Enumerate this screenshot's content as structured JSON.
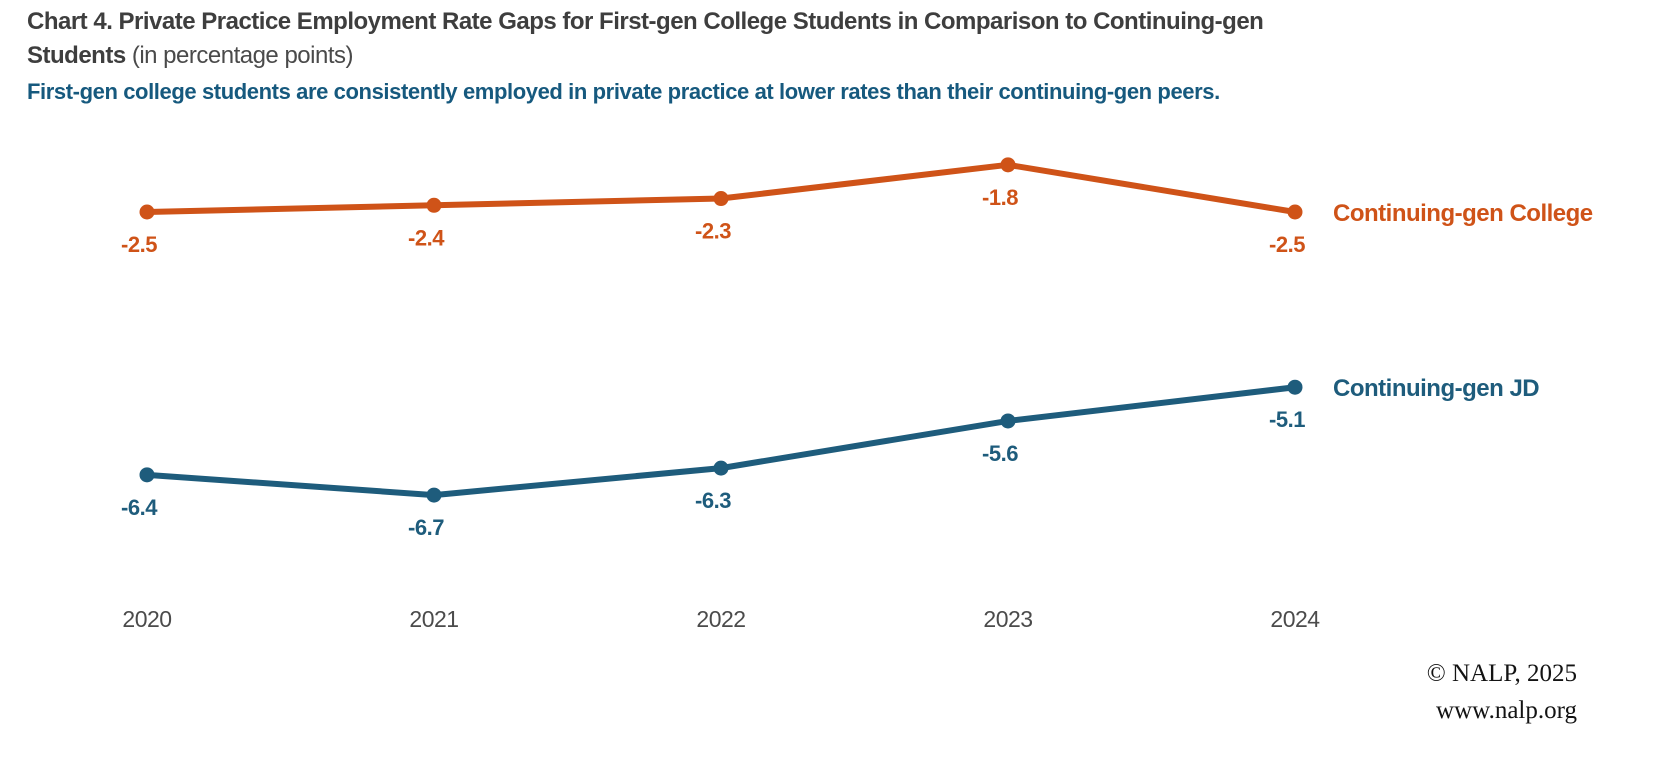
{
  "title": {
    "bold": "Chart 4. Private Practice Employment Rate Gaps for First-gen College Students in Comparison to Continuing-gen Students",
    "suffix": " (in percentage points)"
  },
  "subtitle": "First-gen college students are consistently employed in private practice at lower rates than their continuing-gen peers.",
  "footer": {
    "line1": "© NALP, 2025",
    "line2": "www.nalp.org"
  },
  "colors": {
    "orange_series": "#cf5318",
    "blue_series": "#1e5c7c",
    "title_text": "#3e3e3e",
    "subtitle_text": "#16597e",
    "axis_text": "#4b4b4b"
  },
  "chart_data": {
    "type": "line",
    "title": "Chart 4. Private Practice Employment Rate Gaps for First-gen College Students in Comparison to Continuing-gen Students (in percentage points)",
    "subtitle": "First-gen college students are consistently employed in private practice at lower rates than their continuing-gen peers.",
    "categories": [
      "2020",
      "2021",
      "2022",
      "2023",
      "2024"
    ],
    "series": [
      {
        "name": "Continuing-gen College",
        "color": "#cf5318",
        "values": [
          -2.5,
          -2.4,
          -2.3,
          -1.8,
          -2.5
        ]
      },
      {
        "name": "Continuing-gen JD",
        "color": "#1e5c7c",
        "values": [
          -6.4,
          -6.7,
          -6.3,
          -5.6,
          -5.1
        ]
      }
    ],
    "xlabel": "",
    "ylabel": "",
    "ylim": [
      -10,
      0
    ],
    "grid": false,
    "data_labels_shown": true,
    "legend_position": "right-of-line-end"
  }
}
